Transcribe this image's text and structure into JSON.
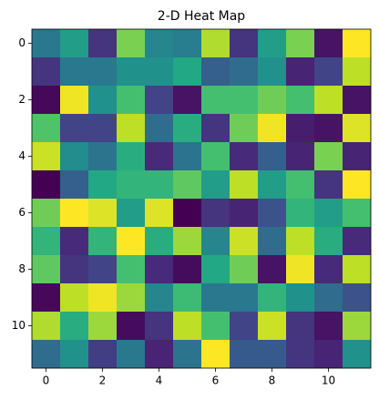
{
  "chart_data": {
    "type": "heatmap",
    "title": "2-D Heat Map",
    "colormap": [
      "#440154",
      "#482475",
      "#414487",
      "#355f8d",
      "#2a788e",
      "#21918c",
      "#22a884",
      "#44bf70",
      "#7ad151",
      "#bddf26",
      "#fde725"
    ],
    "xlim": [
      -0.5,
      11.5
    ],
    "ylim": [
      11.5,
      -0.5
    ],
    "xticks": [
      0,
      2,
      4,
      6,
      8,
      10
    ],
    "yticks": [
      0,
      2,
      4,
      6,
      8,
      10
    ],
    "z": [
      [
        0.4,
        0.55,
        0.15,
        0.8,
        0.45,
        0.42,
        0.88,
        0.15,
        0.55,
        0.8,
        0.05,
        1.0
      ],
      [
        0.15,
        0.4,
        0.4,
        0.5,
        0.5,
        0.6,
        0.3,
        0.35,
        0.5,
        0.1,
        0.2,
        0.9
      ],
      [
        0.02,
        0.98,
        0.5,
        0.7,
        0.2,
        0.05,
        0.7,
        0.7,
        0.78,
        0.7,
        0.9,
        0.05
      ],
      [
        0.72,
        0.2,
        0.2,
        0.9,
        0.35,
        0.62,
        0.15,
        0.78,
        0.98,
        0.08,
        0.05,
        0.95
      ],
      [
        0.92,
        0.48,
        0.38,
        0.62,
        0.12,
        0.38,
        0.7,
        0.12,
        0.3,
        0.1,
        0.8,
        0.1
      ],
      [
        0.0,
        0.3,
        0.6,
        0.65,
        0.65,
        0.75,
        0.55,
        0.9,
        0.55,
        0.7,
        0.15,
        1.0
      ],
      [
        0.78,
        1.0,
        0.95,
        0.55,
        0.95,
        0.0,
        0.15,
        0.1,
        0.25,
        0.65,
        0.55,
        0.7
      ],
      [
        0.65,
        0.12,
        0.65,
        1.0,
        0.62,
        0.85,
        0.45,
        0.92,
        0.35,
        0.9,
        0.62,
        0.12
      ],
      [
        0.75,
        0.15,
        0.2,
        0.7,
        0.12,
        0.03,
        0.6,
        0.78,
        0.05,
        0.98,
        0.12,
        0.9
      ],
      [
        0.02,
        0.9,
        0.98,
        0.85,
        0.45,
        0.68,
        0.4,
        0.4,
        0.65,
        0.5,
        0.35,
        0.25
      ],
      [
        0.88,
        0.62,
        0.85,
        0.03,
        0.15,
        0.9,
        0.7,
        0.2,
        0.92,
        0.15,
        0.05,
        0.85
      ],
      [
        0.35,
        0.5,
        0.18,
        0.4,
        0.1,
        0.38,
        1.0,
        0.28,
        0.28,
        0.15,
        0.1,
        0.5
      ]
    ]
  }
}
